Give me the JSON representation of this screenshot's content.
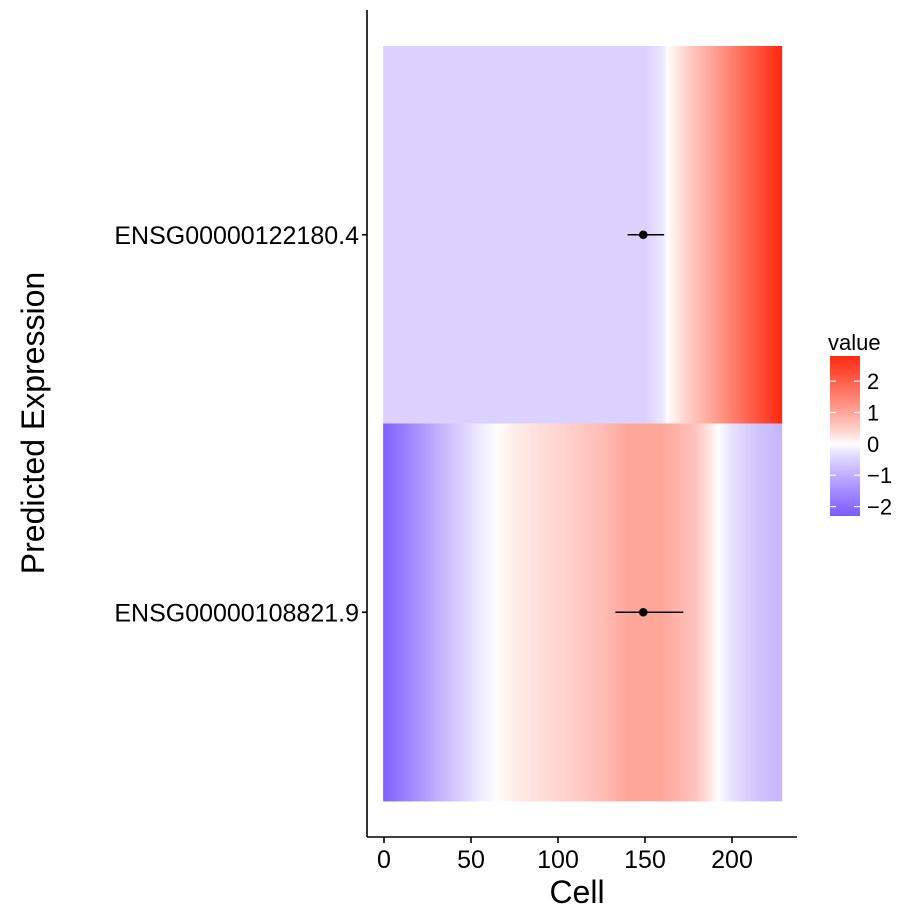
{
  "chart_data": {
    "type": "heatmap",
    "xlabel": "Cell",
    "ylabel": "Predicted Expression",
    "xlim": [
      -5,
      237
    ],
    "x_ticks": [
      0,
      50,
      100,
      150,
      200
    ],
    "x_tick_labels": [
      "0",
      "50",
      "100",
      "150",
      "200"
    ],
    "x_max_cell": 228,
    "rows": [
      {
        "name": "ENSG00000122180.4",
        "profile": [
          [
            0,
            -0.5
          ],
          [
            150,
            -0.5
          ],
          [
            160,
            -0.25
          ],
          [
            163,
            0
          ],
          [
            175,
            0.5
          ],
          [
            195,
            1.3
          ],
          [
            215,
            2.2
          ],
          [
            228,
            2.8
          ]
        ],
        "point": {
          "x": 149,
          "xmin": 140,
          "xmax": 161
        }
      },
      {
        "name": "ENSG00000108821.9",
        "profile": [
          [
            0,
            -2.2
          ],
          [
            15,
            -1.6
          ],
          [
            30,
            -1.0
          ],
          [
            45,
            -0.5
          ],
          [
            55,
            -0.2
          ],
          [
            65,
            0
          ],
          [
            78,
            0.2
          ],
          [
            100,
            0.4
          ],
          [
            125,
            0.7
          ],
          [
            140,
            1.0
          ],
          [
            160,
            1.0
          ],
          [
            180,
            0.6
          ],
          [
            192,
            0
          ],
          [
            200,
            -0.3
          ],
          [
            215,
            -0.7
          ],
          [
            228,
            -0.9
          ]
        ],
        "point": {
          "x": 149,
          "xmin": 133,
          "xmax": 172
        }
      }
    ],
    "legend": {
      "title": "value",
      "position": "right",
      "breaks": [
        2,
        1,
        0,
        -1,
        -2
      ],
      "labels": [
        "2",
        "1",
        "0",
        "−1",
        "−2"
      ],
      "range": [
        -2.3,
        2.8
      ],
      "low_color": "#7b5cff",
      "mid_color": "#ffffff",
      "high_color": "#ff2a0f"
    },
    "grid": false
  }
}
